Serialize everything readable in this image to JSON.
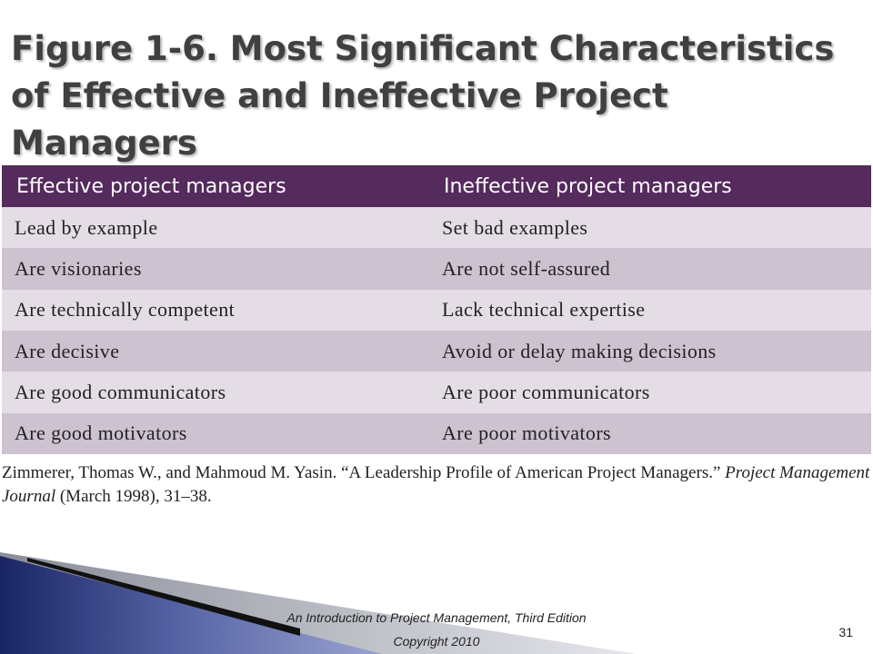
{
  "slide": {
    "title_line1": "Figure 1-6. Most Significant Characteristics",
    "title_line2": "of Effective and Ineffective Project Managers"
  },
  "table": {
    "headers": [
      "Effective project managers",
      "Ineffective project managers"
    ],
    "rows": [
      [
        "Lead by example",
        "Set bad examples"
      ],
      [
        "Are visionaries",
        "Are not self-assured"
      ],
      [
        "Are technically competent",
        "Lack technical expertise"
      ],
      [
        "Are decisive",
        "Avoid or delay making decisions"
      ],
      [
        "Are good communicators",
        "Are poor communicators"
      ],
      [
        "Are good motivators",
        "Are poor motivators"
      ]
    ],
    "header_color": "#552a5d",
    "row_colors": [
      "#e4dde6",
      "#cdc2cf"
    ]
  },
  "citation": {
    "text_before": "Zimmerer, Thomas W., and Mahmoud M. Yasin. “A Leadership Profile of American Project Managers.” ",
    "journal": "Project Management Journal",
    "text_after": " (March 1998), 31–38."
  },
  "footer": {
    "book": "An Introduction to Project Management, Third Edition",
    "copyright": "Copyright 2010",
    "page_number": "31"
  }
}
